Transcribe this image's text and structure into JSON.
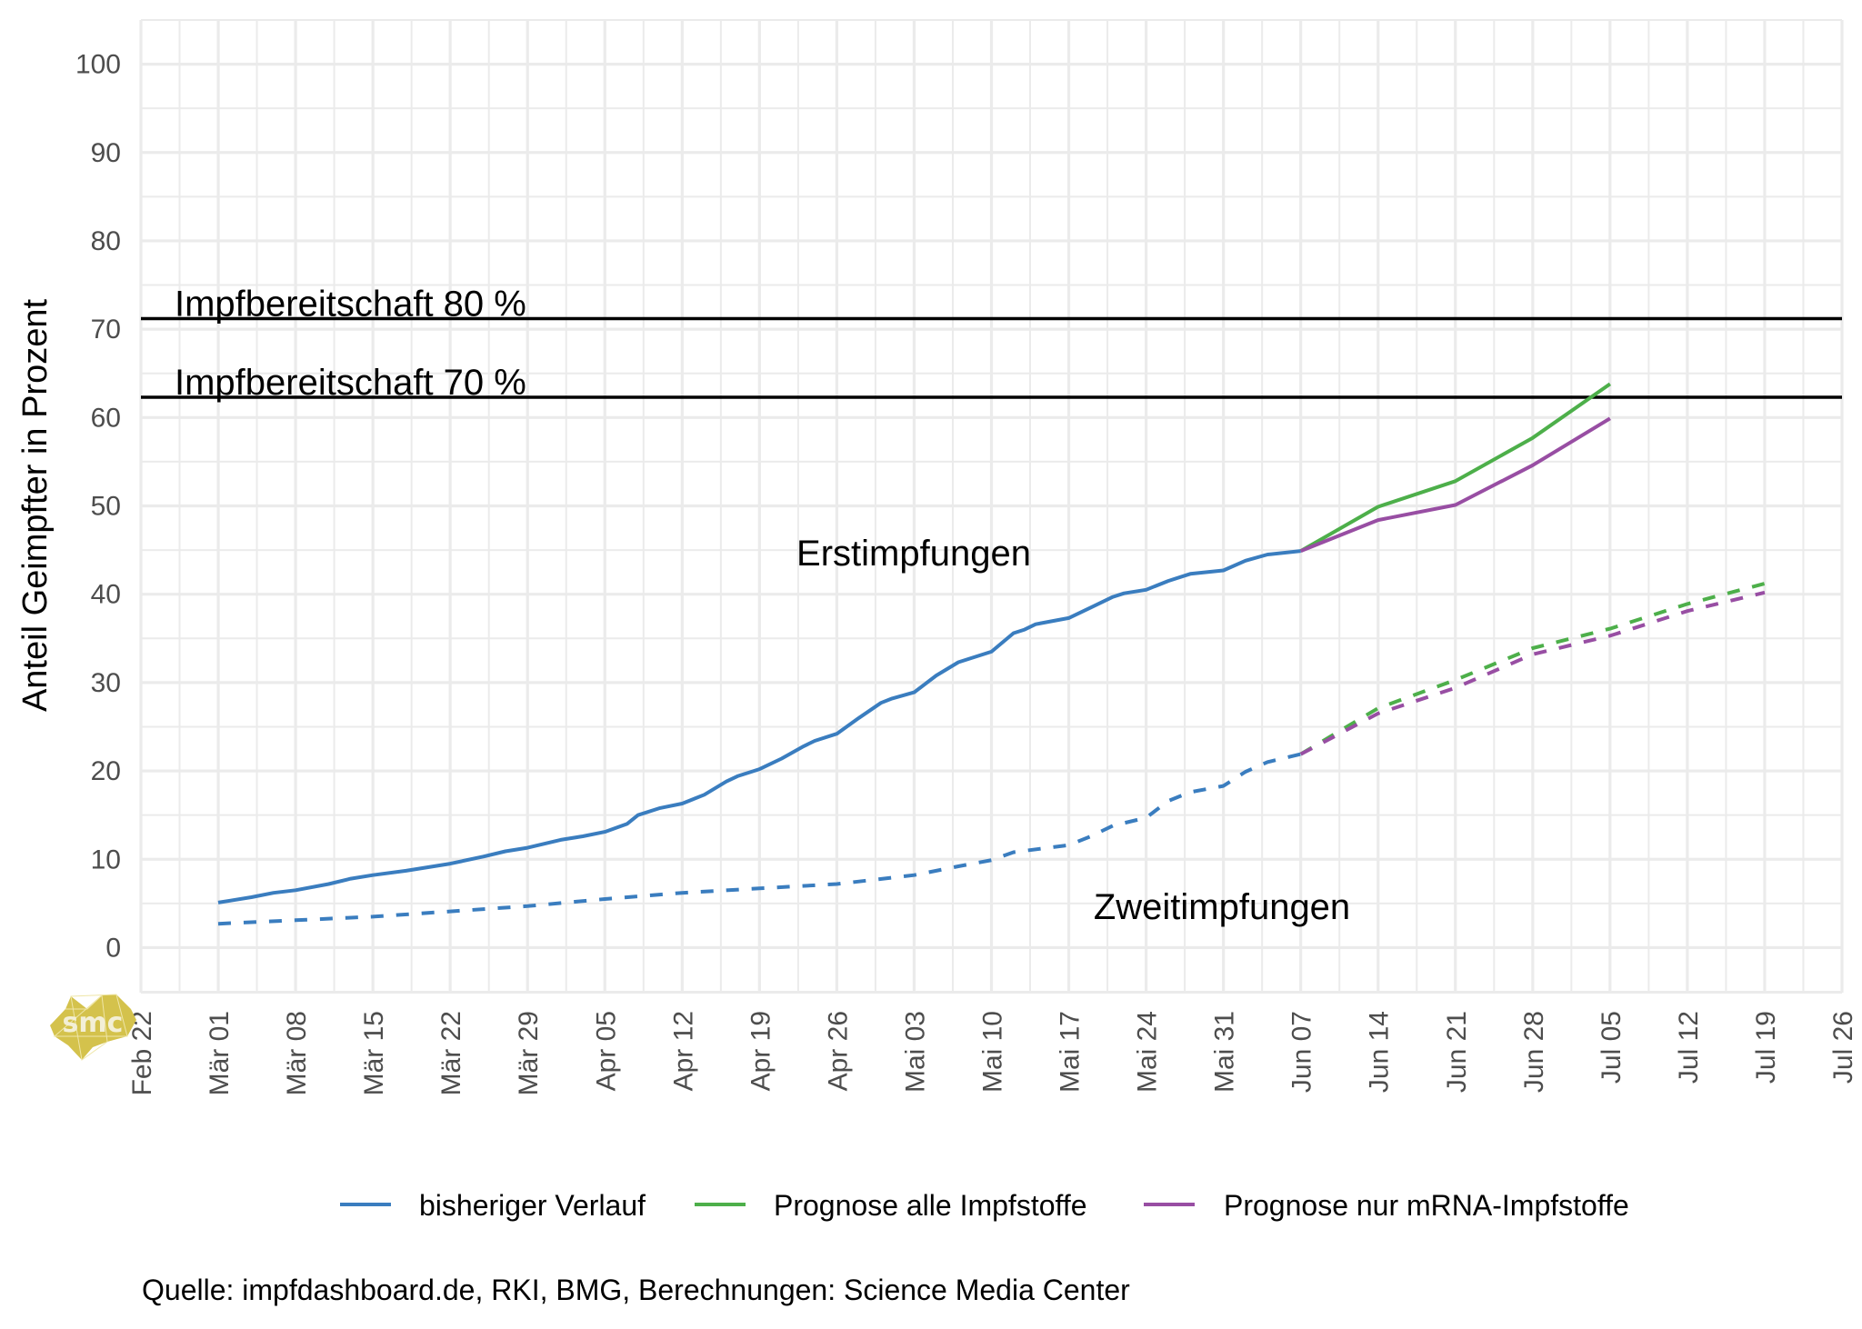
{
  "chart_data": {
    "type": "line",
    "title": "",
    "xlabel": "",
    "ylabel": "Anteil Geimpfter in Prozent",
    "ylim": [
      -5.1,
      105
    ],
    "xlim": [
      "2021-02-22",
      "2021-07-26"
    ],
    "grid": true,
    "y_ticks": [
      0,
      10,
      20,
      30,
      40,
      50,
      60,
      70,
      80,
      90,
      100
    ],
    "x_ticks": [
      {
        "date": "2021-02-22",
        "label": "Feb 22"
      },
      {
        "date": "2021-03-01",
        "label": "Mär 01"
      },
      {
        "date": "2021-03-08",
        "label": "Mär 08"
      },
      {
        "date": "2021-03-15",
        "label": "Mär 15"
      },
      {
        "date": "2021-03-22",
        "label": "Mär 22"
      },
      {
        "date": "2021-03-29",
        "label": "Mär 29"
      },
      {
        "date": "2021-04-05",
        "label": "Apr 05"
      },
      {
        "date": "2021-04-12",
        "label": "Apr 12"
      },
      {
        "date": "2021-04-19",
        "label": "Apr 19"
      },
      {
        "date": "2021-04-26",
        "label": "Apr 26"
      },
      {
        "date": "2021-05-03",
        "label": "Mai 03"
      },
      {
        "date": "2021-05-10",
        "label": "Mai 10"
      },
      {
        "date": "2021-05-17",
        "label": "Mai 17"
      },
      {
        "date": "2021-05-24",
        "label": "Mai 24"
      },
      {
        "date": "2021-05-31",
        "label": "Mai 31"
      },
      {
        "date": "2021-06-07",
        "label": "Jun 07"
      },
      {
        "date": "2021-06-14",
        "label": "Jun 14"
      },
      {
        "date": "2021-06-21",
        "label": "Jun 21"
      },
      {
        "date": "2021-06-28",
        "label": "Jun 28"
      },
      {
        "date": "2021-07-05",
        "label": "Jul 05"
      },
      {
        "date": "2021-07-12",
        "label": "Jul 12"
      },
      {
        "date": "2021-07-19",
        "label": "Jul 19"
      },
      {
        "date": "2021-07-26",
        "label": "Jul 26"
      }
    ],
    "hlines": [
      {
        "label": "Impfbereitschaft 80 %",
        "value": 71.2
      },
      {
        "label": "Impfbereitschaft 70 %",
        "value": 62.3
      }
    ],
    "annotations": [
      {
        "text": "Erstimpfungen",
        "x": "2021-05-03",
        "y": 44.7
      },
      {
        "text": "Zweitimpfungen",
        "x": "2021-05-31",
        "y": 4.7
      }
    ],
    "legend": {
      "position": "bottom",
      "entries": [
        {
          "label": "bisheriger Verlauf",
          "color": "#3a7dbf"
        },
        {
          "label": "Prognose alle Impfstoffe",
          "color": "#4daf4a"
        },
        {
          "label": "Prognose nur mRNA-Impfstoffe",
          "color": "#984ea3"
        }
      ]
    },
    "series": [
      {
        "name": "bisheriger Verlauf – Erstimpfungen",
        "group": "bisheriger Verlauf",
        "dose": "Erstimpfungen",
        "color": "#3a7dbf",
        "dashed": false,
        "points": [
          [
            "2021-03-01",
            5.1
          ],
          [
            "2021-03-04",
            5.7
          ],
          [
            "2021-03-06",
            6.2
          ],
          [
            "2021-03-08",
            6.5
          ],
          [
            "2021-03-11",
            7.2
          ],
          [
            "2021-03-13",
            7.8
          ],
          [
            "2021-03-15",
            8.2
          ],
          [
            "2021-03-18",
            8.7
          ],
          [
            "2021-03-20",
            9.1
          ],
          [
            "2021-03-22",
            9.5
          ],
          [
            "2021-03-25",
            10.3
          ],
          [
            "2021-03-27",
            10.9
          ],
          [
            "2021-03-29",
            11.3
          ],
          [
            "2021-04-01",
            12.2
          ],
          [
            "2021-04-03",
            12.6
          ],
          [
            "2021-04-05",
            13.1
          ],
          [
            "2021-04-07",
            14.0
          ],
          [
            "2021-04-08",
            15.0
          ],
          [
            "2021-04-10",
            15.8
          ],
          [
            "2021-04-12",
            16.3
          ],
          [
            "2021-04-14",
            17.3
          ],
          [
            "2021-04-16",
            18.8
          ],
          [
            "2021-04-17",
            19.4
          ],
          [
            "2021-04-19",
            20.2
          ],
          [
            "2021-04-21",
            21.4
          ],
          [
            "2021-04-23",
            22.8
          ],
          [
            "2021-04-24",
            23.4
          ],
          [
            "2021-04-26",
            24.2
          ],
          [
            "2021-04-28",
            26.0
          ],
          [
            "2021-04-30",
            27.7
          ],
          [
            "2021-05-01",
            28.2
          ],
          [
            "2021-05-03",
            28.9
          ],
          [
            "2021-05-05",
            30.8
          ],
          [
            "2021-05-07",
            32.3
          ],
          [
            "2021-05-08",
            32.7
          ],
          [
            "2021-05-10",
            33.5
          ],
          [
            "2021-05-12",
            35.6
          ],
          [
            "2021-05-13",
            36.0
          ],
          [
            "2021-05-14",
            36.6
          ],
          [
            "2021-05-17",
            37.3
          ],
          [
            "2021-05-19",
            38.5
          ],
          [
            "2021-05-21",
            39.7
          ],
          [
            "2021-05-22",
            40.1
          ],
          [
            "2021-05-24",
            40.5
          ],
          [
            "2021-05-26",
            41.5
          ],
          [
            "2021-05-28",
            42.3
          ],
          [
            "2021-05-31",
            42.7
          ],
          [
            "2021-06-02",
            43.8
          ],
          [
            "2021-06-04",
            44.5
          ],
          [
            "2021-06-07",
            44.9
          ]
        ]
      },
      {
        "name": "bisheriger Verlauf – Zweitimpfungen",
        "group": "bisheriger Verlauf",
        "dose": "Zweitimpfungen",
        "color": "#3a7dbf",
        "dashed": true,
        "points": [
          [
            "2021-03-01",
            2.7
          ],
          [
            "2021-03-08",
            3.1
          ],
          [
            "2021-03-15",
            3.5
          ],
          [
            "2021-03-22",
            4.1
          ],
          [
            "2021-03-29",
            4.7
          ],
          [
            "2021-04-05",
            5.5
          ],
          [
            "2021-04-12",
            6.2
          ],
          [
            "2021-04-19",
            6.7
          ],
          [
            "2021-04-26",
            7.2
          ],
          [
            "2021-05-03",
            8.2
          ],
          [
            "2021-05-07",
            9.2
          ],
          [
            "2021-05-10",
            9.9
          ],
          [
            "2021-05-12",
            10.8
          ],
          [
            "2021-05-17",
            11.6
          ],
          [
            "2021-05-19",
            12.6
          ],
          [
            "2021-05-21",
            13.8
          ],
          [
            "2021-05-24",
            14.7
          ],
          [
            "2021-05-26",
            16.6
          ],
          [
            "2021-05-28",
            17.6
          ],
          [
            "2021-05-31",
            18.3
          ],
          [
            "2021-06-02",
            19.9
          ],
          [
            "2021-06-04",
            21.0
          ],
          [
            "2021-06-07",
            21.9
          ]
        ]
      },
      {
        "name": "Prognose alle Impfstoffe – Erstimpfungen",
        "group": "Prognose alle Impfstoffe",
        "dose": "Erstimpfungen",
        "color": "#4daf4a",
        "dashed": false,
        "points": [
          [
            "2021-06-07",
            44.9
          ],
          [
            "2021-06-14",
            49.9
          ],
          [
            "2021-06-21",
            52.8
          ],
          [
            "2021-06-28",
            57.7
          ],
          [
            "2021-07-05",
            63.8
          ]
        ]
      },
      {
        "name": "Prognose nur mRNA-Impfstoffe – Erstimpfungen",
        "group": "Prognose nur mRNA-Impfstoffe",
        "dose": "Erstimpfungen",
        "color": "#984ea3",
        "dashed": false,
        "points": [
          [
            "2021-06-07",
            44.9
          ],
          [
            "2021-06-14",
            48.4
          ],
          [
            "2021-06-21",
            50.1
          ],
          [
            "2021-06-28",
            54.6
          ],
          [
            "2021-07-05",
            59.9
          ]
        ]
      },
      {
        "name": "Prognose alle Impfstoffe – Zweitimpfungen",
        "group": "Prognose alle Impfstoffe",
        "dose": "Zweitimpfungen",
        "color": "#4daf4a",
        "dashed": true,
        "points": [
          [
            "2021-06-07",
            21.9
          ],
          [
            "2021-06-14",
            27.1
          ],
          [
            "2021-06-21",
            30.3
          ],
          [
            "2021-06-28",
            33.9
          ],
          [
            "2021-07-05",
            36.1
          ],
          [
            "2021-07-12",
            38.9
          ],
          [
            "2021-07-19",
            41.2
          ]
        ]
      },
      {
        "name": "Prognose nur mRNA-Impfstoffe – Zweitimpfungen",
        "group": "Prognose nur mRNA-Impfstoffe",
        "dose": "Zweitimpfungen",
        "color": "#984ea3",
        "dashed": true,
        "points": [
          [
            "2021-06-07",
            21.9
          ],
          [
            "2021-06-14",
            26.5
          ],
          [
            "2021-06-21",
            29.4
          ],
          [
            "2021-06-28",
            33.2
          ],
          [
            "2021-07-05",
            35.3
          ],
          [
            "2021-07-12",
            38.1
          ],
          [
            "2021-07-19",
            40.2
          ]
        ]
      }
    ],
    "caption": "Quelle: impfdashboard.de, RKI, BMG, Berechnungen: Science Media Center"
  },
  "logo": {
    "text": "smc",
    "color": "#d4c24c"
  },
  "colors": {
    "grid": "#ebebeb",
    "tick_text": "#4d4d4d",
    "hline": "#000000"
  }
}
